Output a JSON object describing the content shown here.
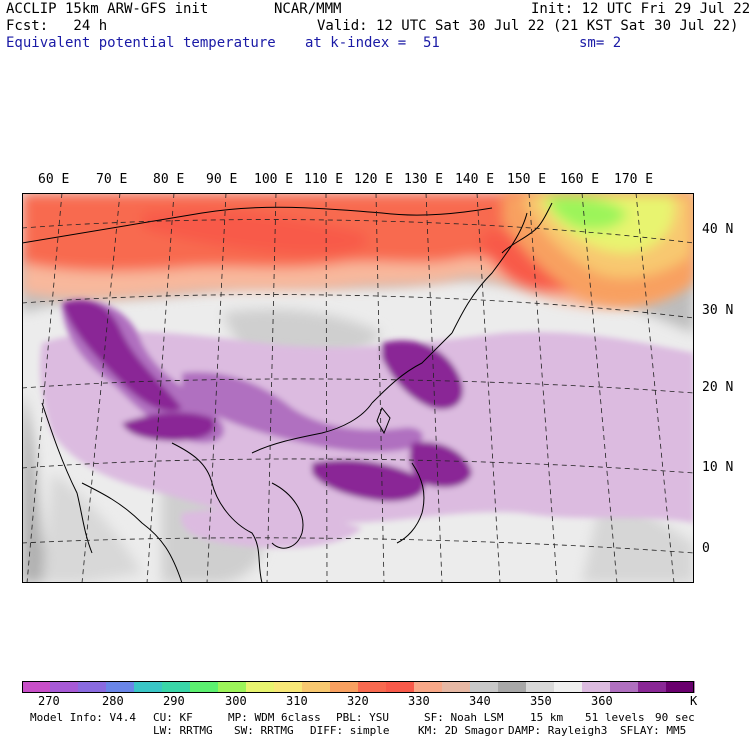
{
  "header": {
    "model_line": "ACCLIP 15km ARW-GFS init",
    "center": "NCAR/MMM",
    "init": "Init: 12 UTC Fri 29 Jul 22",
    "fcst": "Fcst:   24 h",
    "valid": "Valid: 12 UTC Sat 30 Jul 22 (21 KST Sat 30 Jul 22)",
    "field": "Equivalent potential temperature",
    "level": "at k-index =  51",
    "smooth": "sm= 2"
  },
  "map": {
    "lon_labels": [
      "60 E",
      "70 E",
      "80 E",
      "90 E",
      "100 E",
      "110 E",
      "120 E",
      "130 E",
      "140 E",
      "150 E",
      "160 E",
      "170 E"
    ],
    "lat_labels": [
      "40 N",
      "30 N",
      "20 N",
      "10 N",
      "0"
    ]
  },
  "colorbar": {
    "unit": "K",
    "ticks": [
      "270",
      "280",
      "290",
      "300",
      "310",
      "320",
      "330",
      "340",
      "350",
      "360"
    ],
    "colors": [
      "#c84fc8",
      "#a75ad6",
      "#8a6be0",
      "#6a86e8",
      "#3ac6c6",
      "#3ad6a8",
      "#5cf070",
      "#9cf45a",
      "#e8f470",
      "#f8e878",
      "#f8c870",
      "#f8a060",
      "#f86a50",
      "#f85a4a",
      "#f8a888",
      "#e6b8a4",
      "#c8c8c8",
      "#a8a8a8",
      "#d8d8d8",
      "#efefef",
      "#dcbbe0",
      "#b070c0",
      "#8a2896",
      "#6a006e"
    ],
    "legend_colors": {
      "cold_purple": "#dcbbe0",
      "mid_purple": "#b070c0",
      "dark_purple": "#8a2896",
      "warm_red": "#f85a4a",
      "orange": "#f8a060",
      "yellow": "#e8f470",
      "green": "#9cf45a",
      "gray": "#c8c8c8",
      "light_gray": "#efefef"
    }
  },
  "footer": {
    "line1": [
      "Model Info: V4.4",
      "CU: KF",
      "MP: WDM 6class",
      "PBL: YSU",
      "SF: Noah LSM",
      "15 km",
      "51 levels",
      "90 sec"
    ],
    "line2": [
      "LW: RRTMG",
      "SW: RRTMG",
      "DIFF: simple",
      "KM: 2D Smagor",
      "DAMP: Rayleigh3",
      "SFLAY: MM5"
    ]
  }
}
